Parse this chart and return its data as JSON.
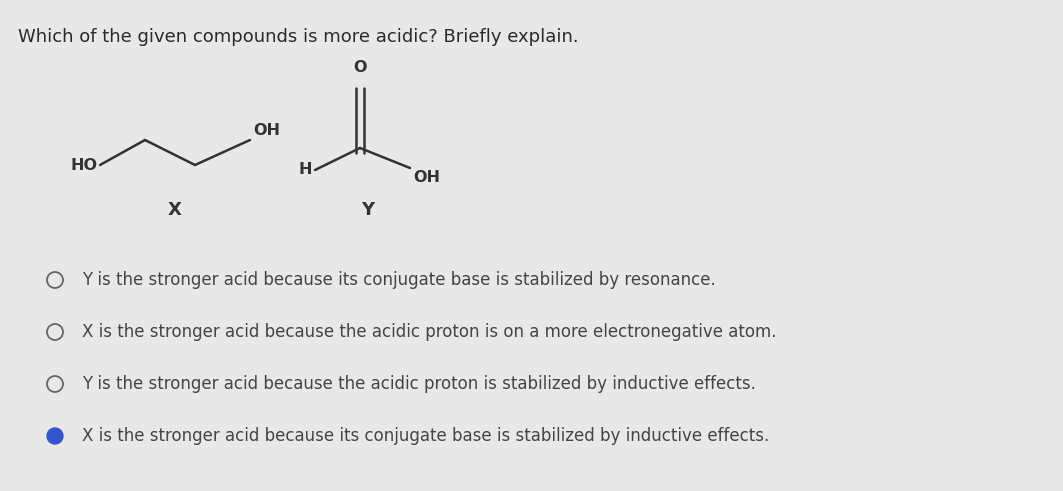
{
  "title": "Which of the given compounds is more acidic? Briefly explain.",
  "title_fontsize": 13,
  "title_color": "#2a2a2a",
  "background_color": "#e8e8e8",
  "options": [
    {
      "text": "Y is the stronger acid because its conjugate base is stabilized by resonance.",
      "selected": false
    },
    {
      "text": "X is the stronger acid because the acidic proton is on a more electronegative atom.",
      "selected": false
    },
    {
      "text": "Y is the stronger acid because the acidic proton is stabilized by inductive effects.",
      "selected": false
    },
    {
      "text": "X is the stronger acid because its conjugate base is stabilized by inductive effects.",
      "selected": true
    }
  ],
  "option_fontsize": 12,
  "option_color": "#444444",
  "radio_unsel_color": "#666666",
  "radio_sel_color": "#3355cc",
  "label_x": "X",
  "label_y": "Y",
  "bond_color": "#333333",
  "lw": 1.8
}
